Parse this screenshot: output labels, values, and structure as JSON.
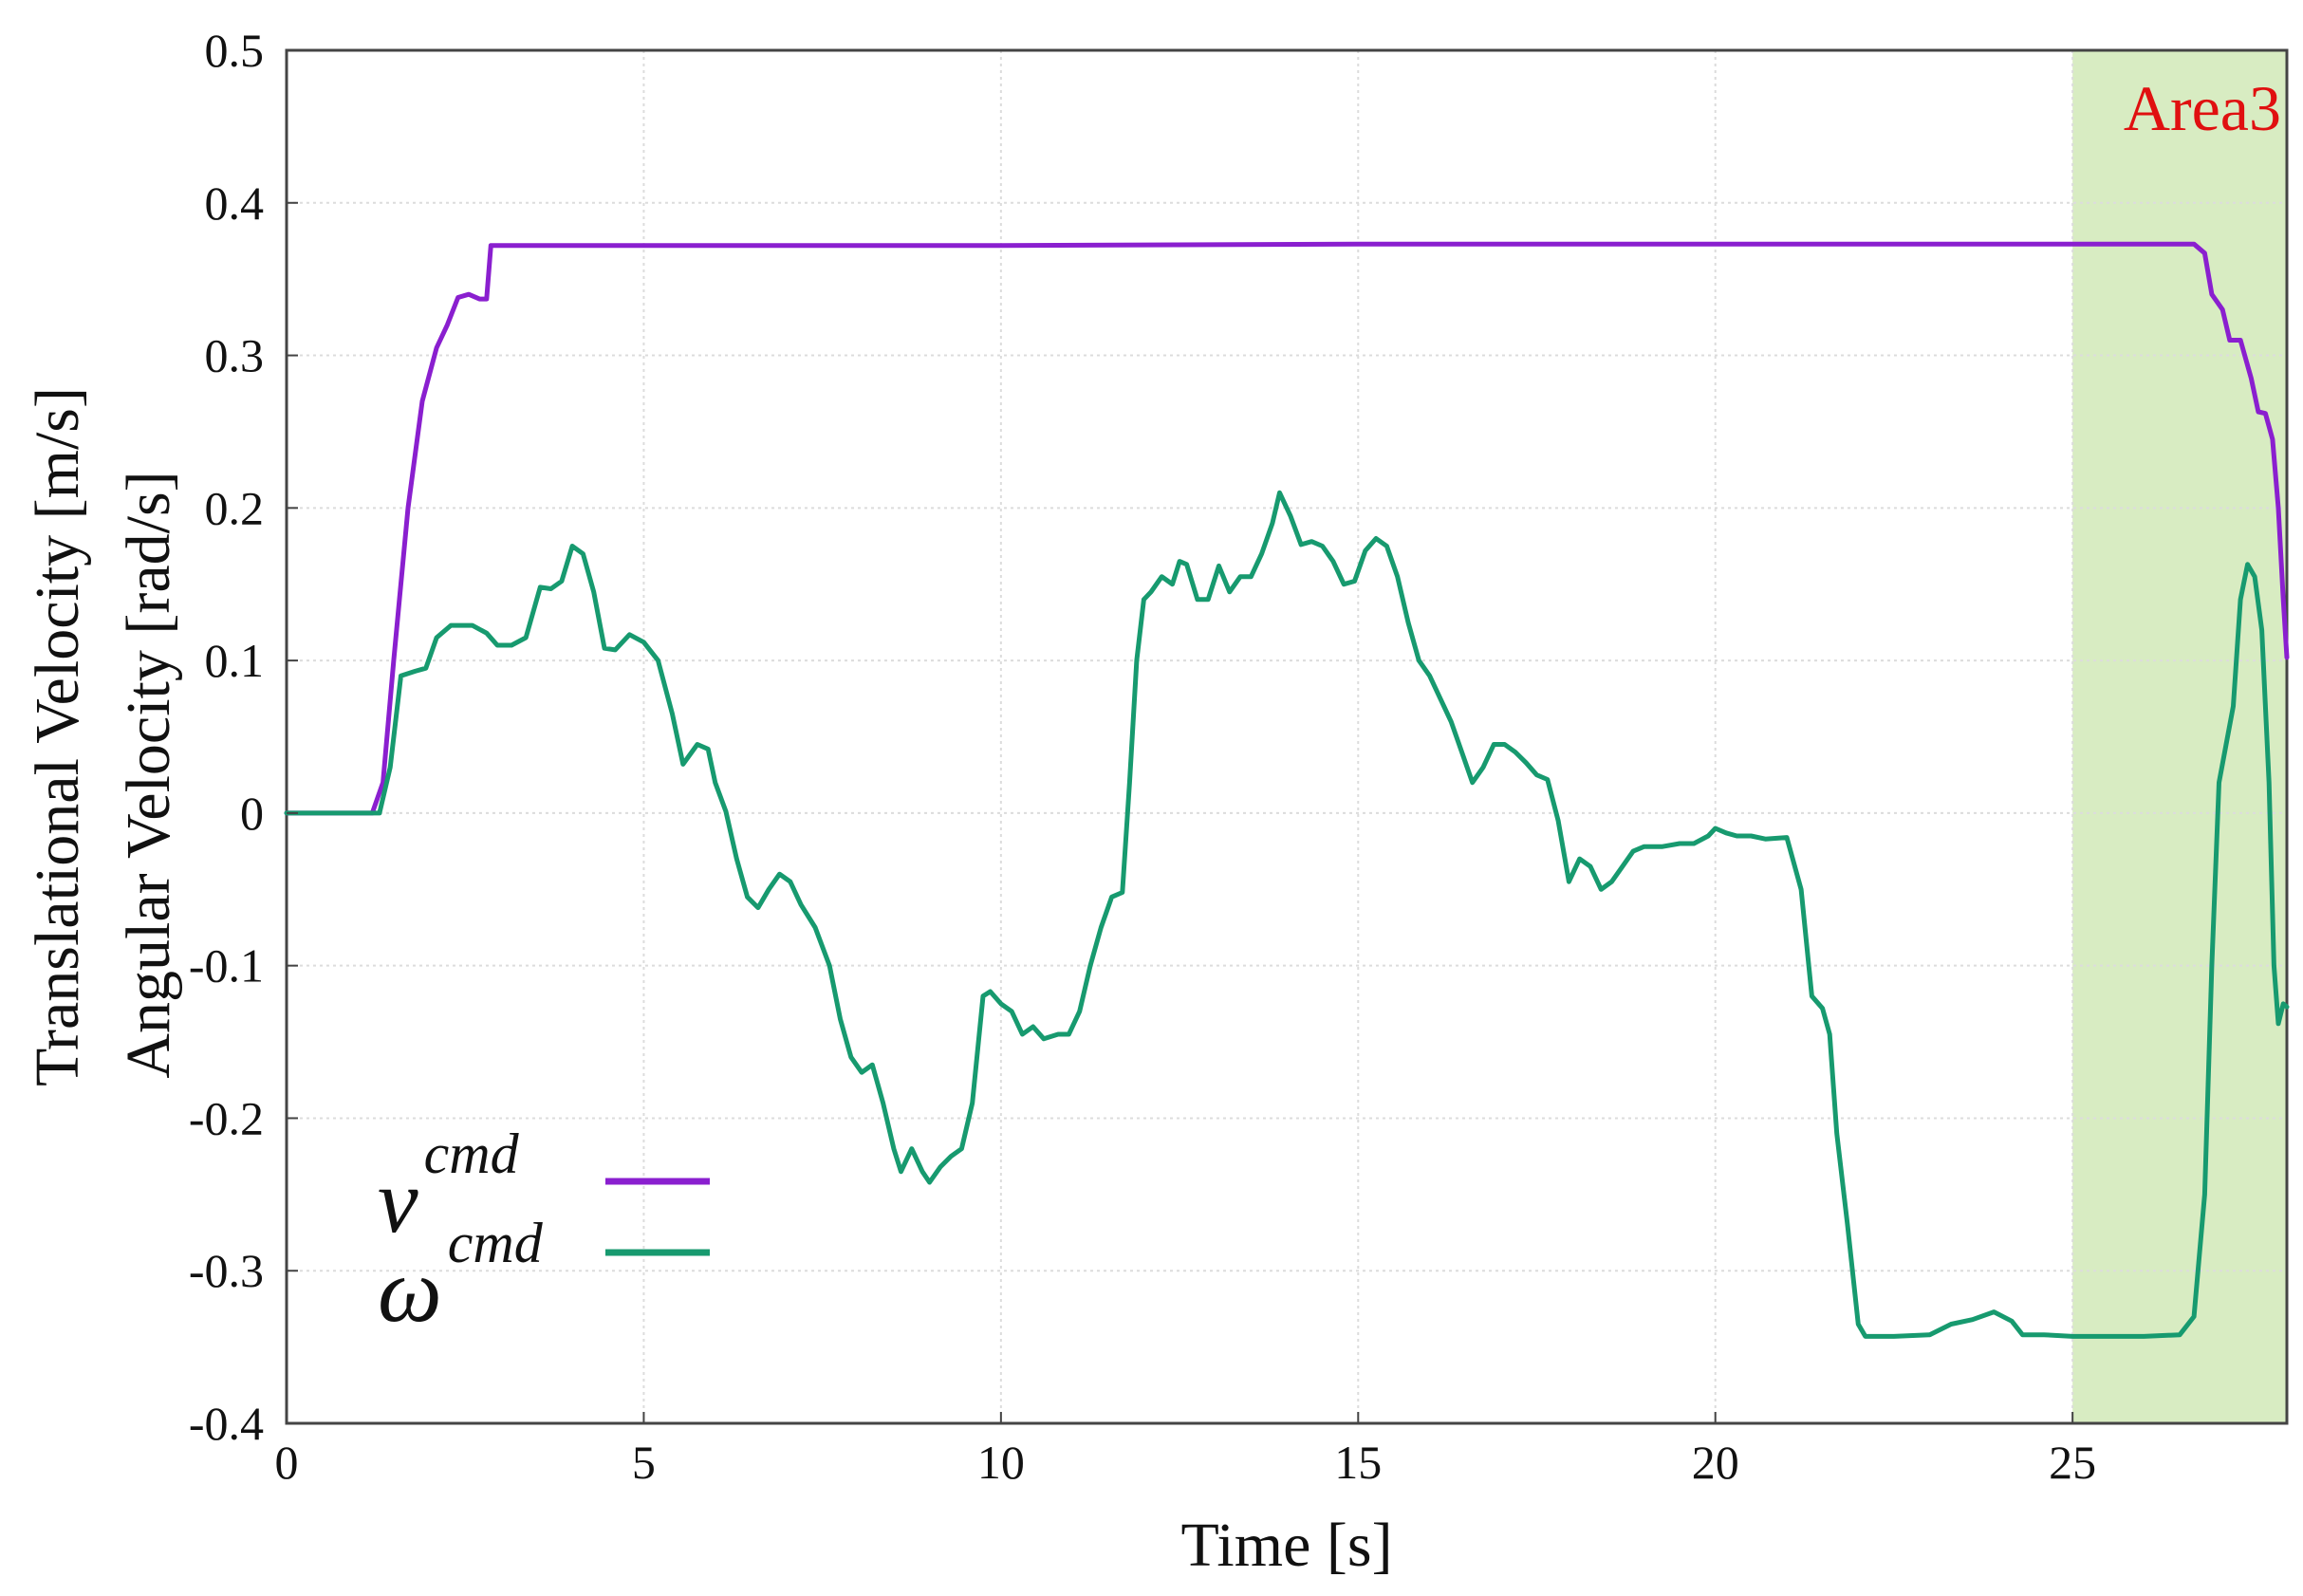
{
  "chart_data": {
    "type": "line",
    "title": "",
    "xlabel": "Time [s]",
    "ylabel_lines": [
      "Translational Velocity [m/s]",
      "Angular Velocity [rad/s]"
    ],
    "xlim": [
      0,
      28
    ],
    "ylim": [
      -0.4,
      0.5
    ],
    "x_ticks": [
      0,
      5,
      10,
      15,
      20,
      25
    ],
    "x_tick_labels": [
      "0",
      "5",
      "10",
      "15",
      "20",
      "25"
    ],
    "y_ticks": [
      -0.4,
      -0.3,
      -0.2,
      -0.1,
      0,
      0.1,
      0.2,
      0.3,
      0.4,
      0.5
    ],
    "y_tick_labels": [
      "-0.4",
      "-0.3",
      "-0.2",
      "-0.1",
      "0",
      "0.1",
      "0.2",
      "0.3",
      "0.4",
      "0.5"
    ],
    "grid": true,
    "legend_position": "bottom-left",
    "highlight_region": {
      "label": "Area3",
      "x_start": 25,
      "x_end": 28,
      "fill_color": "#d8ecc2",
      "label_color": "#e01010"
    },
    "series": [
      {
        "legend_symbol": "v",
        "legend_superscript": "cmd",
        "color": "#8a1fcf",
        "points": [
          [
            0,
            0
          ],
          [
            1.2,
            0
          ],
          [
            1.35,
            0.02
          ],
          [
            1.5,
            0.1
          ],
          [
            1.7,
            0.2
          ],
          [
            1.9,
            0.27
          ],
          [
            2.1,
            0.305
          ],
          [
            2.25,
            0.32
          ],
          [
            2.4,
            0.338
          ],
          [
            2.55,
            0.34
          ],
          [
            2.7,
            0.337
          ],
          [
            2.8,
            0.337
          ],
          [
            2.86,
            0.372
          ],
          [
            3.2,
            0.372
          ],
          [
            10,
            0.372
          ],
          [
            15,
            0.373
          ],
          [
            20,
            0.373
          ],
          [
            25,
            0.373
          ],
          [
            26.7,
            0.373
          ],
          [
            26.85,
            0.367
          ],
          [
            26.95,
            0.34
          ],
          [
            27.1,
            0.33
          ],
          [
            27.2,
            0.31
          ],
          [
            27.35,
            0.31
          ],
          [
            27.5,
            0.285
          ],
          [
            27.6,
            0.263
          ],
          [
            27.7,
            0.262
          ],
          [
            27.8,
            0.245
          ],
          [
            27.88,
            0.2
          ],
          [
            27.95,
            0.14
          ],
          [
            28,
            0.102
          ]
        ]
      },
      {
        "legend_symbol": "ω",
        "legend_superscript": "cmd",
        "color": "#179a6f",
        "points": [
          [
            0,
            0
          ],
          [
            1.3,
            0
          ],
          [
            1.45,
            0.03
          ],
          [
            1.6,
            0.09
          ],
          [
            1.8,
            0.093
          ],
          [
            1.95,
            0.095
          ],
          [
            2.1,
            0.115
          ],
          [
            2.3,
            0.123
          ],
          [
            2.6,
            0.123
          ],
          [
            2.8,
            0.118
          ],
          [
            2.95,
            0.11
          ],
          [
            3.15,
            0.11
          ],
          [
            3.35,
            0.115
          ],
          [
            3.55,
            0.148
          ],
          [
            3.7,
            0.147
          ],
          [
            3.85,
            0.152
          ],
          [
            4.0,
            0.175
          ],
          [
            4.15,
            0.17
          ],
          [
            4.3,
            0.145
          ],
          [
            4.45,
            0.108
          ],
          [
            4.6,
            0.107
          ],
          [
            4.8,
            0.117
          ],
          [
            5.0,
            0.112
          ],
          [
            5.2,
            0.1
          ],
          [
            5.4,
            0.065
          ],
          [
            5.55,
            0.032
          ],
          [
            5.75,
            0.045
          ],
          [
            5.9,
            0.042
          ],
          [
            6.0,
            0.02
          ],
          [
            6.15,
            0.001
          ],
          [
            6.3,
            -0.03
          ],
          [
            6.45,
            -0.055
          ],
          [
            6.6,
            -0.062
          ],
          [
            6.75,
            -0.05
          ],
          [
            6.9,
            -0.04
          ],
          [
            7.05,
            -0.045
          ],
          [
            7.2,
            -0.06
          ],
          [
            7.4,
            -0.075
          ],
          [
            7.6,
            -0.1
          ],
          [
            7.75,
            -0.135
          ],
          [
            7.9,
            -0.16
          ],
          [
            8.05,
            -0.17
          ],
          [
            8.2,
            -0.165
          ],
          [
            8.35,
            -0.19
          ],
          [
            8.5,
            -0.22
          ],
          [
            8.6,
            -0.235
          ],
          [
            8.75,
            -0.22
          ],
          [
            8.9,
            -0.235
          ],
          [
            9.0,
            -0.242
          ],
          [
            9.15,
            -0.232
          ],
          [
            9.3,
            -0.225
          ],
          [
            9.45,
            -0.22
          ],
          [
            9.6,
            -0.19
          ],
          [
            9.75,
            -0.12
          ],
          [
            9.85,
            -0.117
          ],
          [
            10.0,
            -0.125
          ],
          [
            10.15,
            -0.13
          ],
          [
            10.3,
            -0.145
          ],
          [
            10.45,
            -0.14
          ],
          [
            10.6,
            -0.148
          ],
          [
            10.8,
            -0.145
          ],
          [
            10.95,
            -0.145
          ],
          [
            11.1,
            -0.13
          ],
          [
            11.25,
            -0.1
          ],
          [
            11.4,
            -0.075
          ],
          [
            11.55,
            -0.055
          ],
          [
            11.7,
            -0.052
          ],
          [
            11.8,
            0.02
          ],
          [
            11.9,
            0.1
          ],
          [
            12.0,
            0.14
          ],
          [
            12.1,
            0.145
          ],
          [
            12.25,
            0.155
          ],
          [
            12.4,
            0.15
          ],
          [
            12.5,
            0.165
          ],
          [
            12.6,
            0.163
          ],
          [
            12.75,
            0.14
          ],
          [
            12.9,
            0.14
          ],
          [
            13.05,
            0.162
          ],
          [
            13.2,
            0.145
          ],
          [
            13.35,
            0.155
          ],
          [
            13.5,
            0.155
          ],
          [
            13.65,
            0.17
          ],
          [
            13.8,
            0.19
          ],
          [
            13.9,
            0.21
          ],
          [
            14.05,
            0.195
          ],
          [
            14.2,
            0.176
          ],
          [
            14.35,
            0.178
          ],
          [
            14.5,
            0.175
          ],
          [
            14.65,
            0.165
          ],
          [
            14.8,
            0.15
          ],
          [
            14.95,
            0.152
          ],
          [
            15.1,
            0.172
          ],
          [
            15.25,
            0.18
          ],
          [
            15.4,
            0.175
          ],
          [
            15.55,
            0.155
          ],
          [
            15.7,
            0.125
          ],
          [
            15.85,
            0.1
          ],
          [
            16.0,
            0.09
          ],
          [
            16.15,
            0.075
          ],
          [
            16.3,
            0.06
          ],
          [
            16.45,
            0.04
          ],
          [
            16.6,
            0.02
          ],
          [
            16.75,
            0.03
          ],
          [
            16.9,
            0.045
          ],
          [
            17.05,
            0.045
          ],
          [
            17.2,
            0.04
          ],
          [
            17.35,
            0.033
          ],
          [
            17.5,
            0.025
          ],
          [
            17.65,
            0.022
          ],
          [
            17.8,
            -0.005
          ],
          [
            17.95,
            -0.045
          ],
          [
            18.1,
            -0.03
          ],
          [
            18.25,
            -0.035
          ],
          [
            18.4,
            -0.05
          ],
          [
            18.55,
            -0.045
          ],
          [
            18.7,
            -0.035
          ],
          [
            18.85,
            -0.025
          ],
          [
            19.0,
            -0.022
          ],
          [
            19.25,
            -0.022
          ],
          [
            19.5,
            -0.02
          ],
          [
            19.7,
            -0.02
          ],
          [
            19.9,
            -0.015
          ],
          [
            20.0,
            -0.01
          ],
          [
            20.15,
            -0.013
          ],
          [
            20.3,
            -0.015
          ],
          [
            20.5,
            -0.015
          ],
          [
            20.7,
            -0.017
          ],
          [
            21.0,
            -0.016
          ],
          [
            21.2,
            -0.05
          ],
          [
            21.35,
            -0.12
          ],
          [
            21.5,
            -0.128
          ],
          [
            21.6,
            -0.145
          ],
          [
            21.7,
            -0.21
          ],
          [
            21.85,
            -0.27
          ],
          [
            22.0,
            -0.335
          ],
          [
            22.1,
            -0.343
          ],
          [
            22.5,
            -0.343
          ],
          [
            23.0,
            -0.342
          ],
          [
            23.3,
            -0.335
          ],
          [
            23.6,
            -0.332
          ],
          [
            23.9,
            -0.327
          ],
          [
            24.15,
            -0.333
          ],
          [
            24.3,
            -0.342
          ],
          [
            24.6,
            -0.342
          ],
          [
            25.0,
            -0.343
          ],
          [
            26.0,
            -0.343
          ],
          [
            26.5,
            -0.342
          ],
          [
            26.7,
            -0.33
          ],
          [
            26.85,
            -0.25
          ],
          [
            26.95,
            -0.1
          ],
          [
            27.05,
            0.02
          ],
          [
            27.15,
            0.045
          ],
          [
            27.25,
            0.07
          ],
          [
            27.35,
            0.14
          ],
          [
            27.45,
            0.163
          ],
          [
            27.55,
            0.155
          ],
          [
            27.65,
            0.12
          ],
          [
            27.75,
            0.02
          ],
          [
            27.82,
            -0.1
          ],
          [
            27.88,
            -0.138
          ],
          [
            27.95,
            -0.125
          ],
          [
            28,
            -0.127
          ]
        ]
      }
    ]
  }
}
